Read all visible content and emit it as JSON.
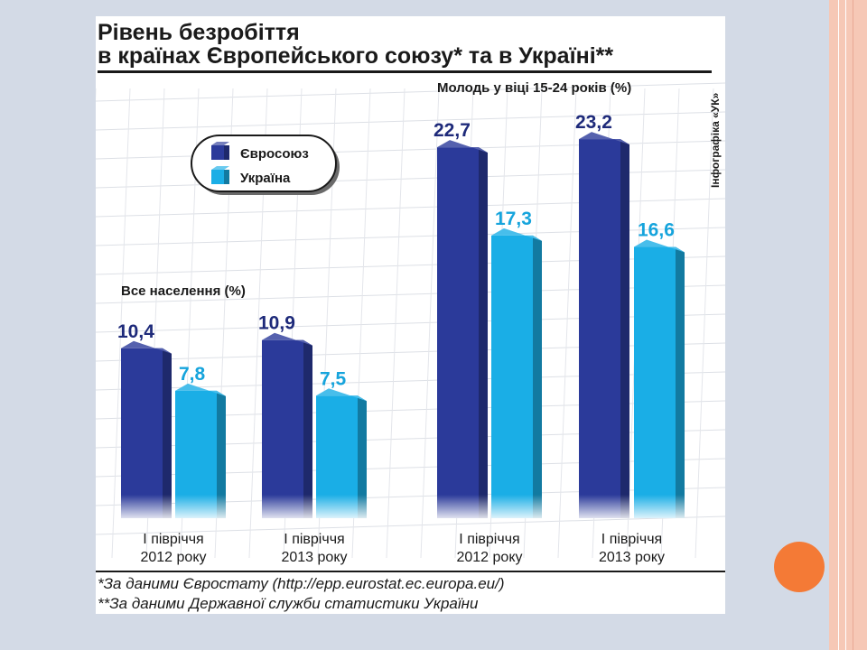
{
  "slide": {
    "accent_color": "#f47a36",
    "background": "#d3dae6"
  },
  "chart_data": {
    "type": "bar",
    "title": "Рівень безробіття",
    "subtitle": "в країнах Європейського союзу* та в Україні**",
    "credit": "Інфографіка «УК»",
    "ylim": [
      0,
      25
    ],
    "grid": true,
    "legend_position": "top-left",
    "groups": [
      {
        "label": "Все населення (%)",
        "categories": [
          {
            "line1": "І півріччя",
            "line2": "2012 року"
          },
          {
            "line1": "І півріччя",
            "line2": "2013 року"
          }
        ]
      },
      {
        "label": "Молодь у віці 15-24 років (%)",
        "categories": [
          {
            "line1": "І півріччя",
            "line2": "2012 року"
          },
          {
            "line1": "І півріччя",
            "line2": "2013 року"
          }
        ]
      }
    ],
    "series": [
      {
        "name": "Євросоюз",
        "color": "#2b3a9a",
        "values": [
          10.4,
          10.9,
          22.7,
          23.2
        ],
        "labels": [
          "10,4",
          "10,9",
          "22,7",
          "23,2"
        ]
      },
      {
        "name": "Україна",
        "color": "#1aaee6",
        "values": [
          7.8,
          7.5,
          17.3,
          16.6
        ],
        "labels": [
          "7,8",
          "7,5",
          "17,3",
          "16,6"
        ]
      }
    ],
    "footnotes": [
      "*За даними Євростату (http://epp.eurostat.ec.europa.eu/)",
      "**За даними Державної служби статистики України"
    ]
  }
}
